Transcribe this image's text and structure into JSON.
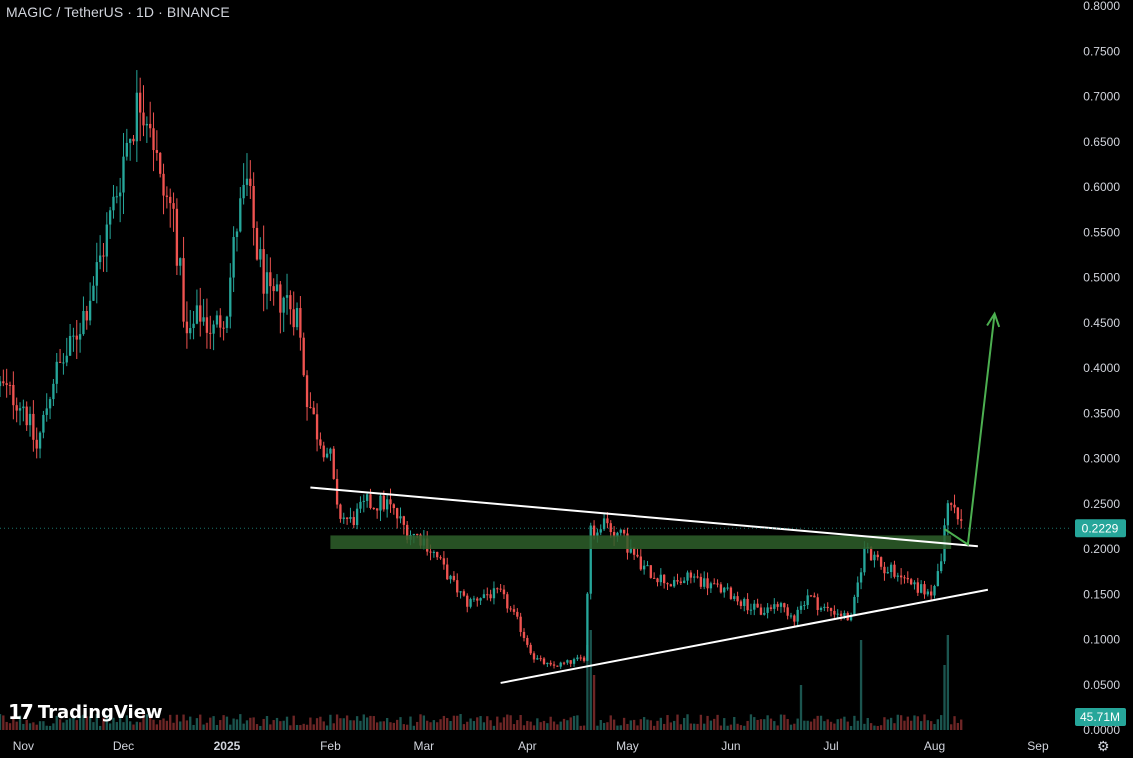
{
  "header": {
    "title": "MAGIC / TetherUS · 1D · BINANCE"
  },
  "branding": {
    "logo_mark": "17",
    "logo_text": "TradingView"
  },
  "icons": {
    "settings": "gear-icon"
  },
  "colors": {
    "up": "#26a69a",
    "down": "#ef5350",
    "background": "#000000",
    "zone": "#2e5f2a",
    "arrow": "#4caf50",
    "trendline": "#ffffff",
    "price_label": "#26a69a"
  },
  "chart_data": {
    "type": "candlestick",
    "symbol": "MAGIC / TetherUS",
    "interval": "1D",
    "exchange": "BINANCE",
    "y_axis": {
      "ticks": [
        "0.8000",
        "0.7500",
        "0.7000",
        "0.6500",
        "0.6000",
        "0.5500",
        "0.5000",
        "0.4500",
        "0.4000",
        "0.3500",
        "0.3000",
        "0.2500",
        "0.2000",
        "0.1500",
        "0.1000",
        "0.0500",
        "0.0000"
      ],
      "range": [
        0.0,
        0.8
      ]
    },
    "x_axis": {
      "ticks": [
        "Nov",
        "Dec",
        "2025",
        "Feb",
        "Mar",
        "Apr",
        "May",
        "Jun",
        "Jul",
        "Aug",
        "Sep"
      ],
      "range": [
        "2024-10-25",
        "2025-09-10"
      ]
    },
    "last_price": "0.2229",
    "volume_label": "45.71M",
    "price_path": [
      [
        "2024-10-25",
        0.38
      ],
      [
        "2024-11-01",
        0.36
      ],
      [
        "2024-11-05",
        0.31
      ],
      [
        "2024-11-10",
        0.39
      ],
      [
        "2024-11-15",
        0.42
      ],
      [
        "2024-11-20",
        0.47
      ],
      [
        "2024-11-24",
        0.52
      ],
      [
        "2024-11-28",
        0.58
      ],
      [
        "2024-12-02",
        0.65
      ],
      [
        "2024-12-06",
        0.7
      ],
      [
        "2024-12-09",
        0.68
      ],
      [
        "2024-12-12",
        0.6
      ],
      [
        "2024-12-16",
        0.57
      ],
      [
        "2024-12-20",
        0.43
      ],
      [
        "2024-12-24",
        0.46
      ],
      [
        "2024-12-28",
        0.44
      ],
      [
        "2025-01-01",
        0.47
      ],
      [
        "2025-01-04",
        0.56
      ],
      [
        "2025-01-07",
        0.6
      ],
      [
        "2025-01-10",
        0.53
      ],
      [
        "2025-01-14",
        0.47
      ],
      [
        "2025-01-18",
        0.48
      ],
      [
        "2025-01-22",
        0.46
      ],
      [
        "2025-01-25",
        0.37
      ],
      [
        "2025-01-28",
        0.33
      ],
      [
        "2025-02-01",
        0.3
      ],
      [
        "2025-02-03",
        0.24
      ],
      [
        "2025-02-07",
        0.23
      ],
      [
        "2025-02-12",
        0.25
      ],
      [
        "2025-02-18",
        0.25
      ],
      [
        "2025-02-24",
        0.22
      ],
      [
        "2025-03-01",
        0.21
      ],
      [
        "2025-03-05",
        0.19
      ],
      [
        "2025-03-10",
        0.16
      ],
      [
        "2025-03-14",
        0.14
      ],
      [
        "2025-03-19",
        0.15
      ],
      [
        "2025-03-24",
        0.15
      ],
      [
        "2025-03-29",
        0.12
      ],
      [
        "2025-04-03",
        0.08
      ],
      [
        "2025-04-08",
        0.07
      ],
      [
        "2025-04-14",
        0.075
      ],
      [
        "2025-04-18",
        0.08
      ],
      [
        "2025-04-20",
        0.22
      ],
      [
        "2025-04-24",
        0.23
      ],
      [
        "2025-04-30",
        0.21
      ],
      [
        "2025-05-05",
        0.18
      ],
      [
        "2025-05-10",
        0.17
      ],
      [
        "2025-05-15",
        0.16
      ],
      [
        "2025-05-20",
        0.17
      ],
      [
        "2025-05-26",
        0.16
      ],
      [
        "2025-06-01",
        0.15
      ],
      [
        "2025-06-05",
        0.14
      ],
      [
        "2025-06-10",
        0.13
      ],
      [
        "2025-06-15",
        0.14
      ],
      [
        "2025-06-20",
        0.125
      ],
      [
        "2025-06-24",
        0.15
      ],
      [
        "2025-06-28",
        0.135
      ],
      [
        "2025-07-03",
        0.13
      ],
      [
        "2025-07-07",
        0.122
      ],
      [
        "2025-07-11",
        0.2
      ],
      [
        "2025-07-16",
        0.18
      ],
      [
        "2025-07-21",
        0.175
      ],
      [
        "2025-07-26",
        0.16
      ],
      [
        "2025-07-31",
        0.15
      ],
      [
        "2025-08-03",
        0.18
      ],
      [
        "2025-08-05",
        0.26
      ],
      [
        "2025-08-07",
        0.25
      ],
      [
        "2025-08-09",
        0.222
      ]
    ],
    "volume_spikes": [
      [
        "2025-04-19",
        0.85
      ],
      [
        "2025-04-20",
        1.0
      ],
      [
        "2025-04-21",
        0.55
      ],
      [
        "2025-06-22",
        0.45
      ],
      [
        "2025-07-10",
        0.9
      ],
      [
        "2025-08-04",
        0.65
      ],
      [
        "2025-08-05",
        0.95
      ]
    ],
    "annotations": {
      "support_zone": {
        "x": [
          "2025-02-01",
          "2025-08-06"
        ],
        "y": [
          0.2,
          0.215
        ]
      },
      "descending_trendline": [
        [
          "2025-01-26",
          0.268
        ],
        [
          "2025-08-14",
          0.203
        ]
      ],
      "ascending_trendline": [
        [
          "2025-03-24",
          0.052
        ],
        [
          "2025-08-17",
          0.155
        ]
      ],
      "projection_arrow": [
        [
          "2025-08-04",
          0.222
        ],
        [
          "2025-08-11",
          0.205
        ],
        [
          "2025-08-19",
          0.46
        ]
      ]
    }
  }
}
